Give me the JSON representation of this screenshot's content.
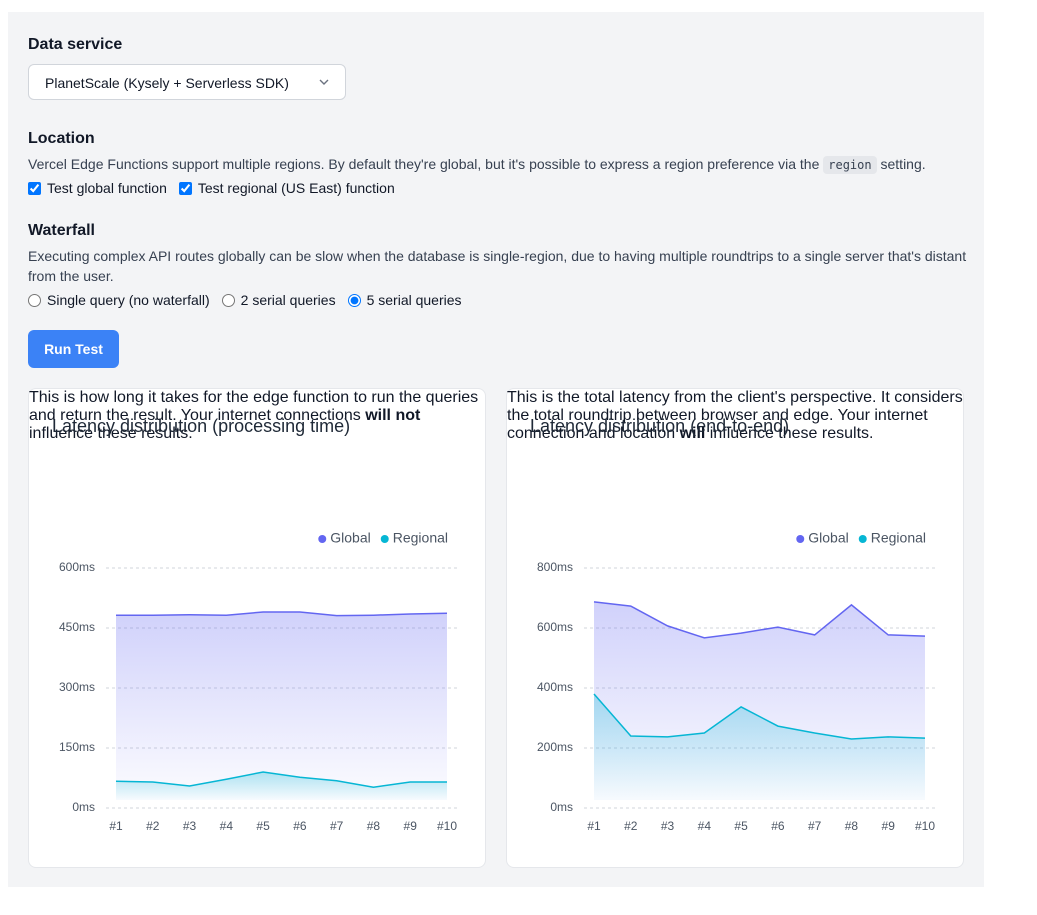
{
  "form": {
    "data_service": {
      "label": "Data service",
      "selected": "PlanetScale (Kysely + Serverless SDK)"
    },
    "location": {
      "heading": "Location",
      "description": [
        "Vercel Edge Functions support multiple regions. By default they're global, but it's possible to express a region preference via the ",
        "region",
        " setting."
      ],
      "options": [
        {
          "label": "Test global function",
          "checked": true
        },
        {
          "label": "Test regional (US East) function",
          "checked": true
        }
      ]
    },
    "waterfall": {
      "heading": "Waterfall",
      "description": "Executing complex API routes globally can be slow when the database is single-region, due to having multiple roundtrips to a single server that's distant from the user.",
      "options": [
        "Single query (no waterfall)",
        "2 serial queries",
        "5 serial queries"
      ],
      "selected_index": 2
    },
    "button": "Run Test"
  },
  "charts": [
    {
      "type": "area",
      "title": "Latency distribution (processing time)",
      "description": [
        "This is how long it takes for the edge function to run the queries and return the result. Your internet connections ",
        "will not",
        " influence these results."
      ],
      "categories": [
        "#1",
        "#2",
        "#3",
        "#4",
        "#5",
        "#6",
        "#7",
        "#8",
        "#9",
        "#10"
      ],
      "series": [
        {
          "name": "Global",
          "color": "#6366f1",
          "values": [
            482,
            482,
            483,
            482,
            490,
            490,
            481,
            482,
            485,
            487
          ]
        },
        {
          "name": "Regional",
          "color": "#06b6d4",
          "values": [
            67,
            65,
            55,
            72,
            90,
            77,
            68,
            52,
            65,
            65
          ]
        }
      ],
      "ylim": [
        0,
        600
      ],
      "yticks": [
        {
          "value": 0,
          "label": "0ms"
        },
        {
          "value": 150,
          "label": "150ms"
        },
        {
          "value": 300,
          "label": "300ms"
        },
        {
          "value": 450,
          "label": "450ms"
        },
        {
          "value": 600,
          "label": "600ms"
        }
      ],
      "grid": true,
      "legend": "top-right"
    },
    {
      "type": "area",
      "title": "Latency distribution (end-to-end)",
      "description": [
        "This is the total latency from the client's perspective. It considers the total roundtrip between browser and edge. Your internet connection and location ",
        "will",
        " influence these results."
      ],
      "categories": [
        "#1",
        "#2",
        "#3",
        "#4",
        "#5",
        "#6",
        "#7",
        "#8",
        "#9",
        "#10"
      ],
      "series": [
        {
          "name": "Global",
          "color": "#6366f1",
          "values": [
            687,
            673,
            607,
            567,
            583,
            603,
            577,
            677,
            577,
            573
          ]
        },
        {
          "name": "Regional",
          "color": "#06b6d4",
          "values": [
            380,
            240,
            237,
            250,
            337,
            273,
            250,
            230,
            237,
            233
          ]
        }
      ],
      "ylim": [
        0,
        800
      ],
      "yticks": [
        {
          "value": 0,
          "label": "0ms"
        },
        {
          "value": 200,
          "label": "200ms"
        },
        {
          "value": 400,
          "label": "400ms"
        },
        {
          "value": 600,
          "label": "600ms"
        },
        {
          "value": 800,
          "label": "800ms"
        }
      ],
      "grid": true,
      "legend": "top-right"
    }
  ]
}
